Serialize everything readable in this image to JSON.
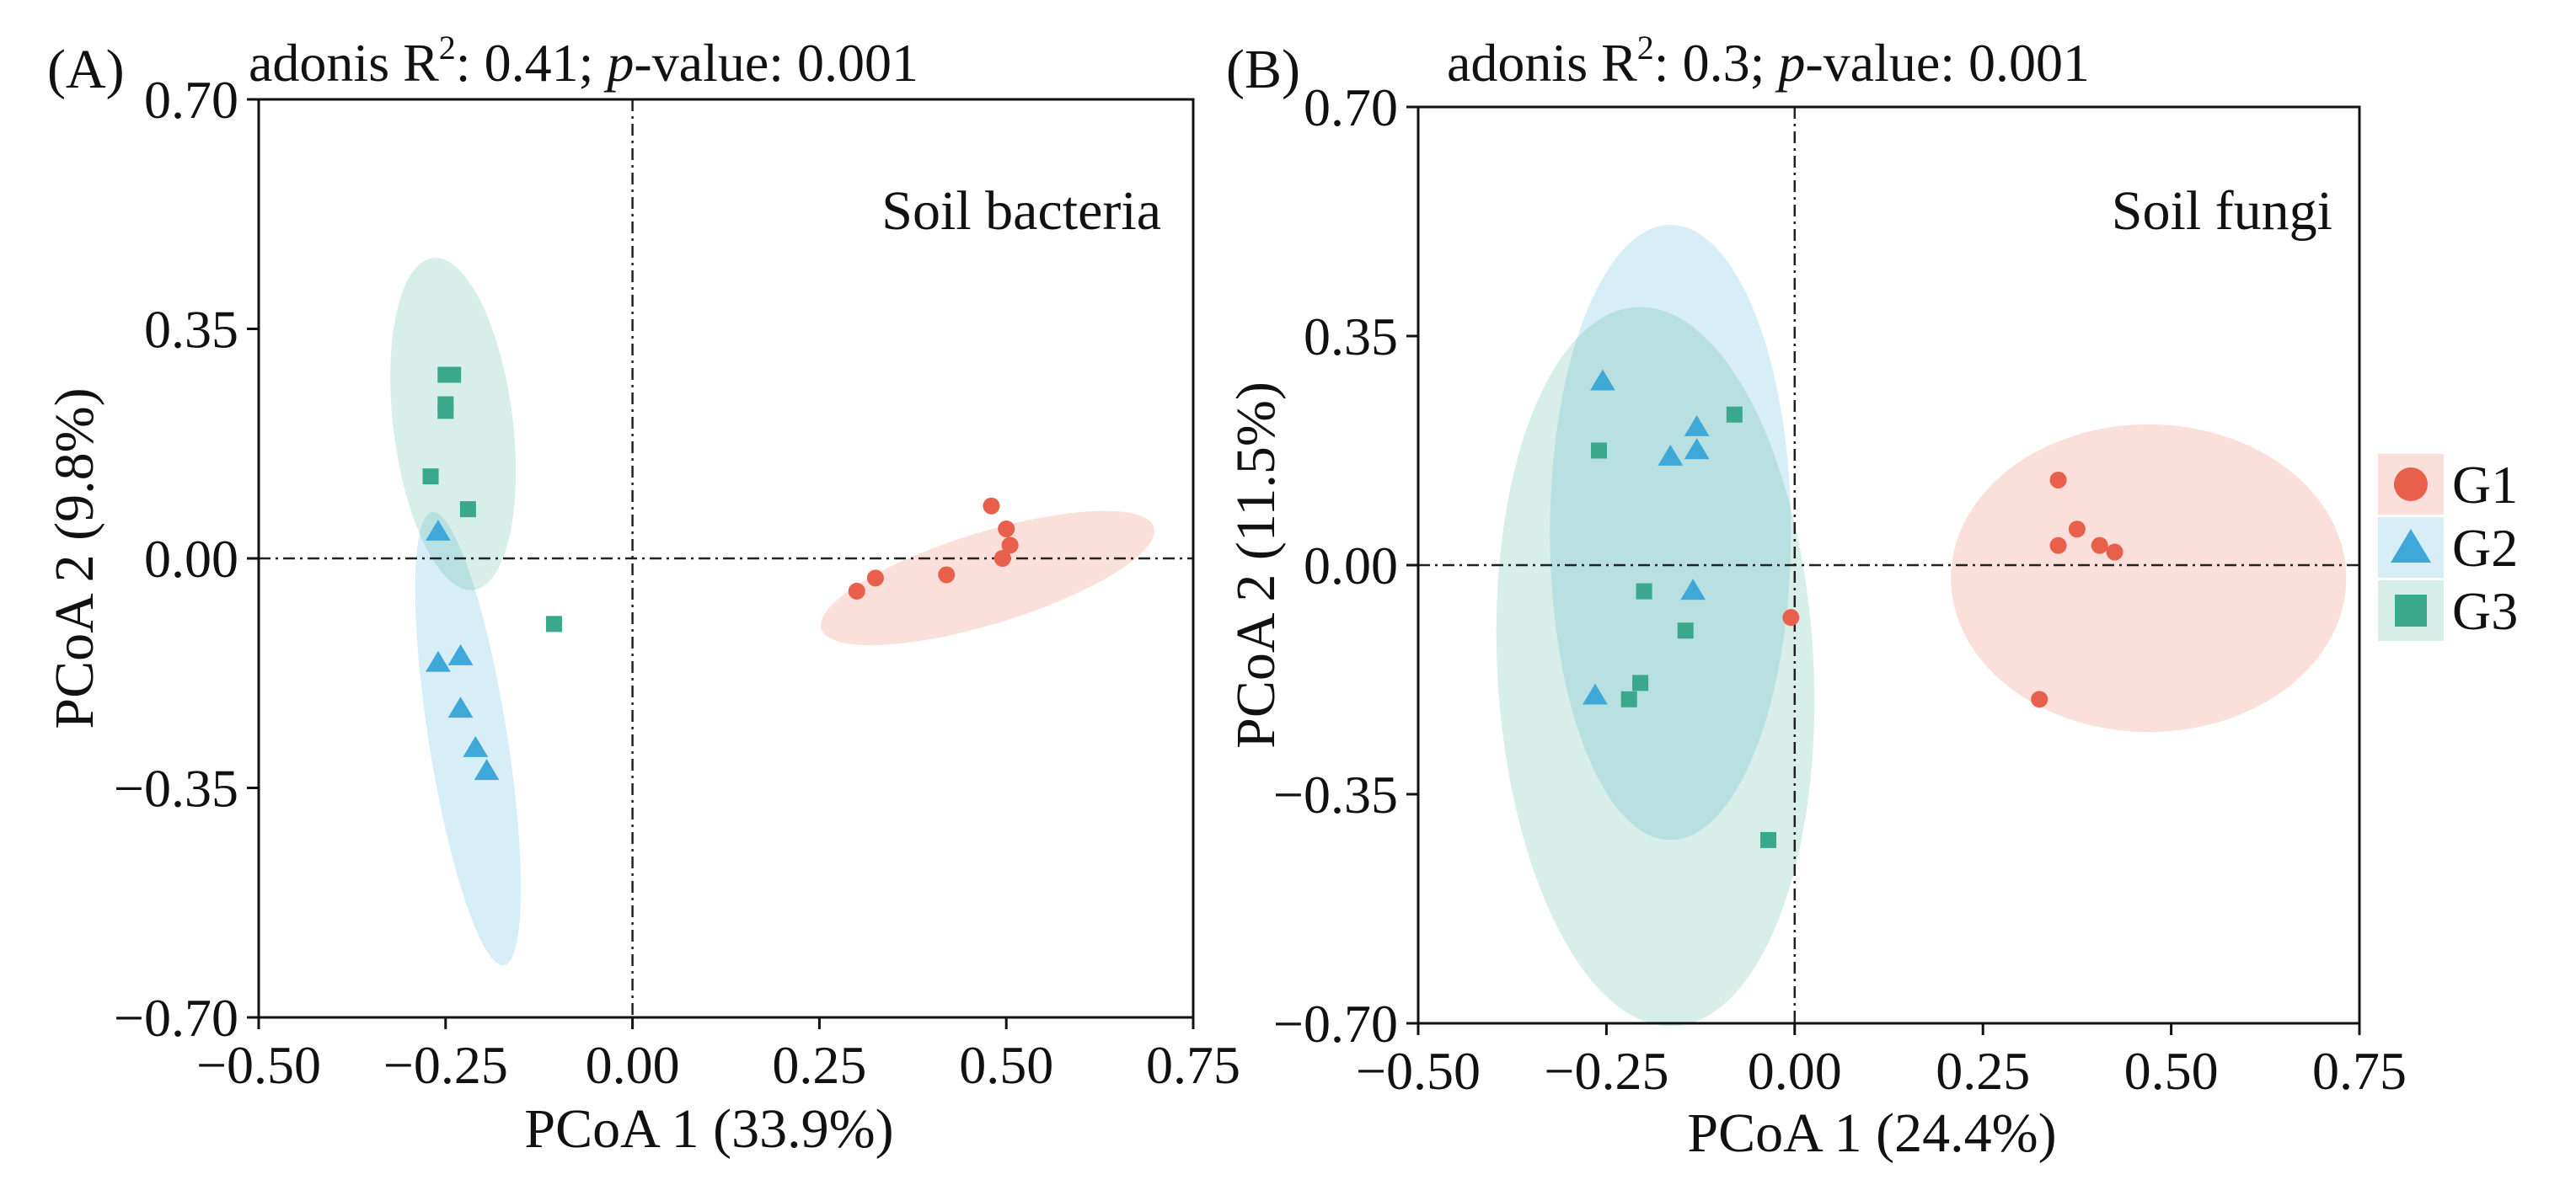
{
  "colors": {
    "G1": "#e8604c",
    "G2": "#3ea9d8",
    "G3": "#3aa88a"
  },
  "legend": [
    {
      "group": "G1",
      "label": "G1",
      "marker": "circle"
    },
    {
      "group": "G2",
      "label": "G2",
      "marker": "triangle"
    },
    {
      "group": "G3",
      "label": "G3",
      "marker": "square"
    }
  ],
  "chart_data": [
    {
      "type": "scatter",
      "panel_label": "(A)",
      "title_prefix": "adonis R",
      "title_sup": "2",
      "title_stat": ": 0.41; ",
      "title_p": "p",
      "title_suffix": "-value: 0.001",
      "annotation": "Soil bacteria",
      "xlabel": "PCoA 1 (33.9%)",
      "ylabel": "PCoA 2 (9.8%)",
      "xlim": [
        -0.5,
        0.75
      ],
      "ylim": [
        -0.7,
        0.7
      ],
      "xticks": [
        -0.5,
        -0.25,
        0.0,
        0.25,
        0.5,
        0.75
      ],
      "xtick_labels": [
        "−0.50",
        "−0.25",
        "0.00",
        "0.25",
        "0.50",
        "0.75"
      ],
      "yticks": [
        -0.7,
        -0.35,
        0.0,
        0.35,
        0.7
      ],
      "ytick_labels": [
        "−0.70",
        "−0.35",
        "0.00",
        "0.35",
        "0.70"
      ],
      "series": [
        {
          "name": "G1",
          "marker": "circle",
          "points": [
            [
              0.3,
              -0.05
            ],
            [
              0.325,
              -0.03
            ],
            [
              0.42,
              -0.025
            ],
            [
              0.48,
              0.08
            ],
            [
              0.495,
              0.0
            ],
            [
              0.5,
              0.045
            ],
            [
              0.505,
              0.02
            ]
          ]
        },
        {
          "name": "G2",
          "marker": "triangle",
          "points": [
            [
              -0.26,
              0.04
            ],
            [
              -0.26,
              -0.16
            ],
            [
              -0.23,
              -0.15
            ],
            [
              -0.23,
              -0.23
            ],
            [
              -0.21,
              -0.29
            ],
            [
              -0.195,
              -0.325
            ]
          ]
        },
        {
          "name": "G3",
          "marker": "square",
          "points": [
            [
              -0.25,
              0.28
            ],
            [
              -0.24,
              0.28
            ],
            [
              -0.25,
              0.235
            ],
            [
              -0.25,
              0.225
            ],
            [
              -0.27,
              0.125
            ],
            [
              -0.22,
              0.075
            ],
            [
              -0.105,
              -0.1
            ]
          ]
        }
      ],
      "ellipses": [
        {
          "group": "G1",
          "center": [
            0.475,
            -0.03
          ],
          "width": 0.465,
          "height": 0.14,
          "angle": 17
        },
        {
          "group": "G2",
          "center": [
            -0.22,
            -0.275
          ],
          "width": 0.105,
          "height": 0.7,
          "angle": 9
        },
        {
          "group": "G3",
          "center": [
            -0.24,
            0.205
          ],
          "width": 0.16,
          "height": 0.51,
          "angle": 7
        }
      ]
    },
    {
      "type": "scatter",
      "panel_label": "(B)",
      "title_prefix": "adonis R",
      "title_sup": "2",
      "title_stat": ": 0.3; ",
      "title_p": "p",
      "title_suffix": "-value: 0.001",
      "annotation": "Soil fungi",
      "xlabel": "PCoA 1 (24.4%)",
      "ylabel": "PCoA 2 (11.5%)",
      "xlim": [
        -0.5,
        0.75
      ],
      "ylim": [
        -0.7,
        0.7
      ],
      "xticks": [
        -0.5,
        -0.25,
        0.0,
        0.25,
        0.5,
        0.75
      ],
      "xtick_labels": [
        "−0.50",
        "−0.25",
        "0.00",
        "0.25",
        "0.50",
        "0.75"
      ],
      "yticks": [
        -0.7,
        -0.35,
        0.0,
        0.35,
        0.7
      ],
      "ytick_labels": [
        "−0.70",
        "−0.35",
        "0.00",
        "0.35",
        "0.70"
      ],
      "series": [
        {
          "name": "G1",
          "marker": "circle",
          "points": [
            [
              0.35,
              0.13
            ],
            [
              0.35,
              0.03
            ],
            [
              0.375,
              0.055
            ],
            [
              0.405,
              0.03
            ],
            [
              0.425,
              0.02
            ],
            [
              0.325,
              -0.205
            ],
            [
              -0.005,
              -0.08
            ]
          ]
        },
        {
          "name": "G2",
          "marker": "triangle",
          "points": [
            [
              -0.255,
              0.28
            ],
            [
              -0.13,
              0.21
            ],
            [
              -0.13,
              0.175
            ],
            [
              -0.165,
              0.165
            ],
            [
              -0.135,
              -0.04
            ],
            [
              -0.265,
              -0.2
            ]
          ]
        },
        {
          "name": "G3",
          "marker": "square",
          "points": [
            [
              -0.08,
              0.23
            ],
            [
              -0.26,
              0.175
            ],
            [
              -0.2,
              -0.04
            ],
            [
              -0.145,
              -0.1
            ],
            [
              -0.205,
              -0.18
            ],
            [
              -0.22,
              -0.205
            ],
            [
              -0.035,
              -0.42
            ]
          ]
        }
      ],
      "ellipses": [
        {
          "group": "G1",
          "center": [
            0.47,
            -0.02
          ],
          "width": 0.525,
          "height": 0.47,
          "angle": 0
        },
        {
          "group": "G2",
          "center": [
            -0.165,
            0.05
          ],
          "width": 0.32,
          "height": 0.94,
          "angle": 0
        },
        {
          "group": "G3",
          "center": [
            -0.185,
            -0.155
          ],
          "width": 0.42,
          "height": 1.1,
          "angle": 3
        }
      ]
    }
  ]
}
